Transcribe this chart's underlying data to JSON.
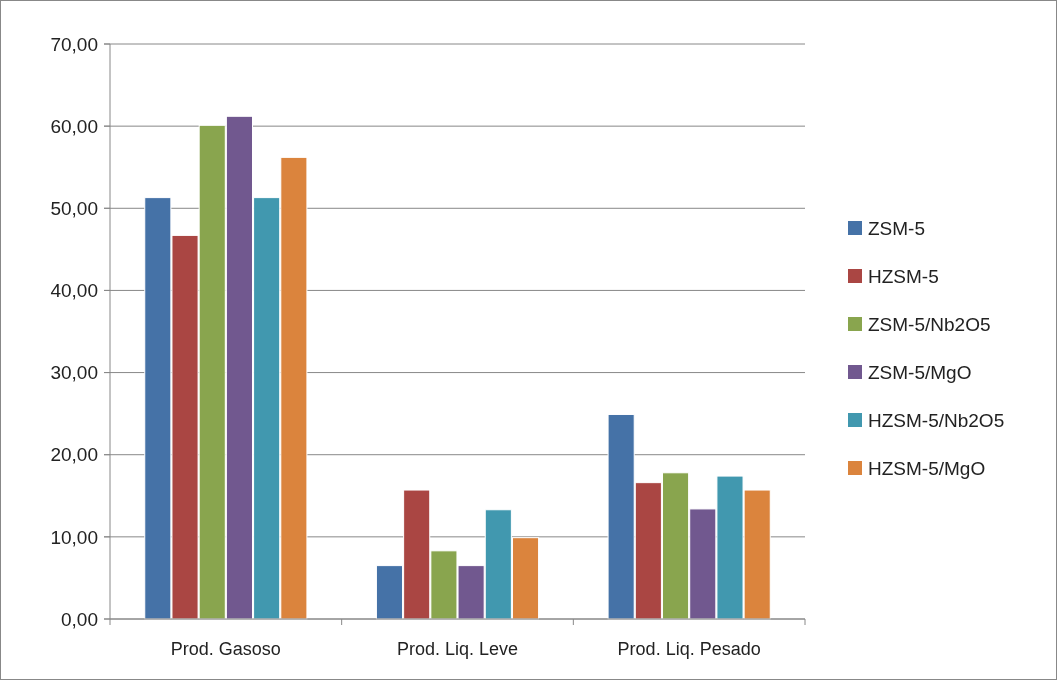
{
  "chart_data": {
    "type": "bar",
    "categories": [
      "Prod. Gasoso",
      "Prod. Liq. Leve",
      "Prod. Liq. Pesado"
    ],
    "series": [
      {
        "name": "ZSM-5",
        "color": "#4572a7",
        "values": [
          51.3,
          6.5,
          24.9
        ]
      },
      {
        "name": "HZSM-5",
        "color": "#aa4643",
        "values": [
          46.7,
          15.7,
          16.6
        ]
      },
      {
        "name": "ZSM-5/Nb2O5",
        "color": "#89a54e",
        "values": [
          60.1,
          8.3,
          17.8
        ]
      },
      {
        "name": "ZSM-5/MgO",
        "color": "#71588f",
        "values": [
          61.2,
          6.5,
          13.4
        ]
      },
      {
        "name": "HZSM-5/Nb2O5",
        "color": "#4198af",
        "values": [
          51.3,
          13.3,
          17.4
        ]
      },
      {
        "name": "HZSM-5/MgO",
        "color": "#db843d",
        "values": [
          56.2,
          9.9,
          15.7
        ]
      }
    ],
    "ylim": [
      0,
      70
    ],
    "yticks": [
      {
        "value": 0,
        "label": "0,00"
      },
      {
        "value": 10,
        "label": "10,00"
      },
      {
        "value": 20,
        "label": "20,00"
      },
      {
        "value": 30,
        "label": "30,00"
      },
      {
        "value": 40,
        "label": "40,00"
      },
      {
        "value": 50,
        "label": "50,00"
      },
      {
        "value": 60,
        "label": "60,00"
      },
      {
        "value": 70,
        "label": "70,00"
      }
    ],
    "grid": "y",
    "legend": "right"
  }
}
